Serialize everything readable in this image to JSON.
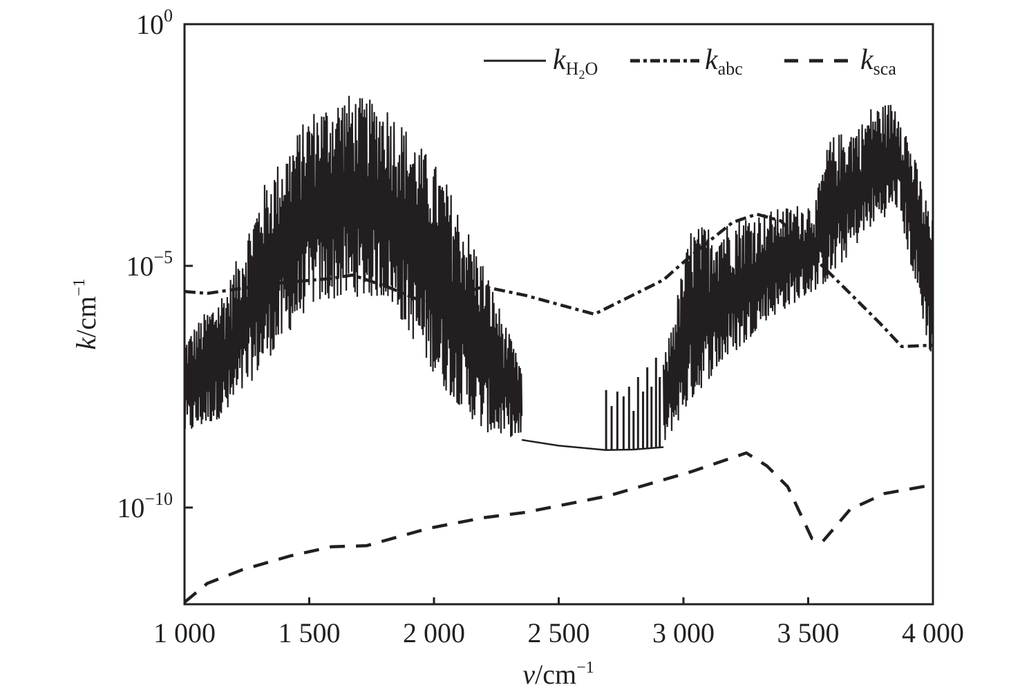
{
  "chart_data": {
    "type": "line",
    "title": "",
    "xlabel": {
      "var": "v",
      "unit": "/cm",
      "exp": "−1"
    },
    "ylabel": {
      "var": "k",
      "unit": "/cm",
      "exp": "−1"
    },
    "xlim": [
      1000,
      4000
    ],
    "ylim_log10": [
      -12,
      0
    ],
    "yscale": "log",
    "grid": false,
    "legend_position": "top-right",
    "xticks": [
      {
        "value": 1000,
        "label": "1 000"
      },
      {
        "value": 1500,
        "label": "1 500"
      },
      {
        "value": 2000,
        "label": "2 000"
      },
      {
        "value": 2500,
        "label": "2 500"
      },
      {
        "value": 3000,
        "label": "3 000"
      },
      {
        "value": 3500,
        "label": "3 500"
      },
      {
        "value": 4000,
        "label": "4 000"
      }
    ],
    "yticks": [
      {
        "log10": 0,
        "base": "10",
        "exp": "0"
      },
      {
        "log10": -5,
        "base": "10",
        "exp": "−5"
      },
      {
        "log10": -10,
        "base": "10",
        "exp": "−10"
      }
    ],
    "series": [
      {
        "name": "k_H2O",
        "legend_main": "k",
        "legend_sub": "H",
        "legend_sub2": "2",
        "legend_sub3": "O",
        "style": "solid",
        "color": "#231f20",
        "note": "rapidly oscillating band between lower and upper envelopes (log10 values)",
        "bands": [
          {
            "x": [
              1000,
              1175,
              1313,
              1507,
              1645,
              1812,
              2033,
              2199,
              2338,
              2352
            ],
            "upper": [
              -6.5,
              -5.36,
              -3.36,
              -1.79,
              -1.43,
              -1.64,
              -3.07,
              -4.93,
              -6.93,
              -6.93
            ],
            "lower": [
              -8.5,
              -8.07,
              -7.07,
              -5.79,
              -5.64,
              -5.64,
              -7.5,
              -8.43,
              -8.57,
              -8.6
            ]
          },
          {
            "x": [
              2920,
              3030,
              3169,
              3252,
              3307,
              3529,
              3584,
              3723,
              3751,
              3861,
              4000
            ],
            "upper": [
              -7.0,
              -4.21,
              -4.1,
              -3.93,
              -3.9,
              -3.64,
              -2.36,
              -2.0,
              -1.71,
              -1.57,
              -4.07
            ],
            "lower": [
              -8.7,
              -7.79,
              -6.93,
              -6.6,
              -6.21,
              -5.5,
              -5.3,
              -4.36,
              -4.2,
              -3.79,
              -7.07
            ]
          }
        ],
        "smooth": {
          "x": [
            2352,
            2500,
            2690,
            2800,
            2920
          ],
          "log10": [
            -8.6,
            -8.72,
            -8.81,
            -8.8,
            -8.75
          ]
        },
        "spikes": {
          "x": [
            2690,
            2712,
            2735,
            2760,
            2782,
            2800,
            2818,
            2838,
            2855,
            2872,
            2890,
            2905
          ],
          "log10": [
            -7.57,
            -7.9,
            -7.6,
            -7.7,
            -7.5,
            -8.0,
            -7.3,
            -7.6,
            -7.1,
            -7.5,
            -6.9,
            -7.3
          ]
        }
      },
      {
        "name": "k_abc",
        "legend_main": "k",
        "legend_sub": "abc",
        "style": "dashdot",
        "color": "#231f20",
        "x": [
          1000,
          1091,
          1368,
          1590,
          1673,
          1812,
          1978,
          2199,
          2366,
          2643,
          2920,
          3030,
          3197,
          3294,
          3391,
          3529,
          3668,
          3792,
          3875,
          4000
        ],
        "log10": [
          -5.53,
          -5.57,
          -5.36,
          -5.26,
          -5.19,
          -5.43,
          -5.79,
          -5.43,
          -5.61,
          -6.0,
          -5.29,
          -4.79,
          -4.1,
          -3.93,
          -4.07,
          -4.86,
          -5.57,
          -6.21,
          -6.67,
          -6.64
        ]
      },
      {
        "name": "k_sca",
        "legend_main": "k",
        "legend_sub": "sca",
        "style": "dashed",
        "color": "#231f20",
        "x": [
          1000,
          1091,
          1230,
          1424,
          1590,
          1729,
          1978,
          2199,
          2366,
          2698,
          3030,
          3252,
          3335,
          3418,
          3515,
          3557,
          3668,
          3806,
          4000
        ],
        "log10": [
          -11.96,
          -11.57,
          -11.29,
          -11.0,
          -10.81,
          -10.79,
          -10.43,
          -10.21,
          -10.1,
          -9.76,
          -9.26,
          -8.87,
          -9.14,
          -9.57,
          -10.64,
          -10.71,
          -10.04,
          -9.71,
          -9.53
        ]
      }
    ]
  }
}
